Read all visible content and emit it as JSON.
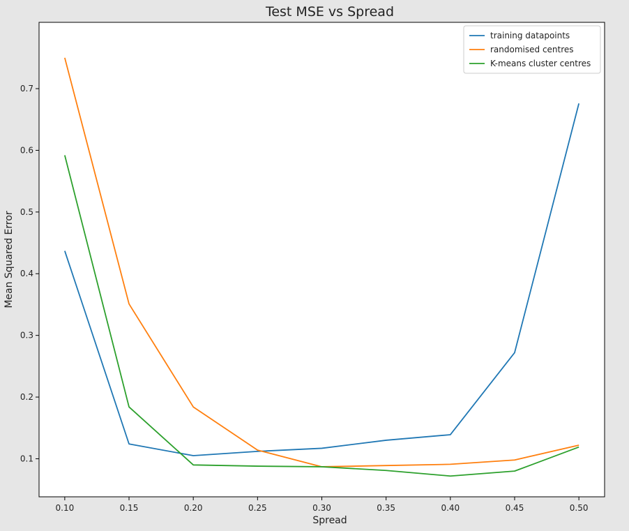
{
  "chart_data": {
    "type": "line",
    "title": "Test MSE vs Spread",
    "xlabel": "Spread",
    "ylabel": "Mean Squared Error",
    "x": [
      0.1,
      0.15,
      0.2,
      0.25,
      0.3,
      0.35,
      0.4,
      0.45,
      0.5
    ],
    "x_ticks": [
      "0.10",
      "0.15",
      "0.20",
      "0.25",
      "0.30",
      "0.35",
      "0.40",
      "0.45",
      "0.50"
    ],
    "y_ticks": [
      "0.1",
      "0.2",
      "0.3",
      "0.4",
      "0.5",
      "0.6",
      "0.7"
    ],
    "xlim": [
      0.08,
      0.52
    ],
    "ylim": [
      0.0383,
      0.8075
    ],
    "grid": false,
    "legend_position": "top-right",
    "series": [
      {
        "name": "training datapoints",
        "color": "#1f77b4",
        "values": [
          0.437,
          0.124,
          0.105,
          0.112,
          0.117,
          0.13,
          0.139,
          0.272,
          0.676
        ]
      },
      {
        "name": "randomised centres",
        "color": "#ff7f0e",
        "values": [
          0.75,
          0.351,
          0.184,
          0.114,
          0.087,
          0.089,
          0.091,
          0.098,
          0.122
        ]
      },
      {
        "name": "K-means cluster centres",
        "color": "#2ca02c",
        "values": [
          0.592,
          0.184,
          0.09,
          0.088,
          0.087,
          0.081,
          0.072,
          0.08,
          0.119
        ]
      }
    ]
  }
}
